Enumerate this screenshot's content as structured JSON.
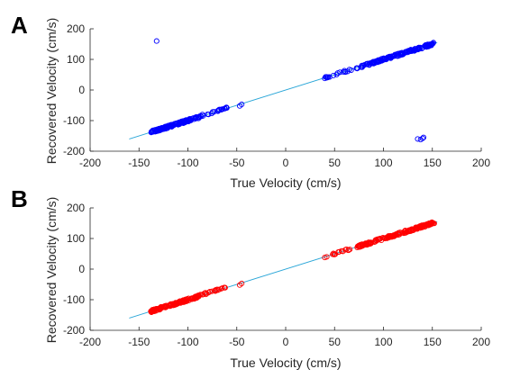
{
  "chart_data": [
    {
      "type": "scatter",
      "panel_label": "A",
      "xlabel": "True Velocity (cm/s)",
      "ylabel": "Recovered Velocity (cm/s)",
      "xlim": [
        -200,
        200
      ],
      "ylim": [
        -200,
        200
      ],
      "xticks": [
        -200,
        -150,
        -100,
        -50,
        0,
        50,
        100,
        150,
        200
      ],
      "yticks": [
        -200,
        -100,
        0,
        100,
        200
      ],
      "grid": false,
      "marker": "open-circle",
      "marker_color": "#0000ff",
      "line_color": "#2aa6d8",
      "reference_line": {
        "x": [
          -160,
          155
        ],
        "y": [
          -160,
          155
        ]
      },
      "series": [
        {
          "values_by_cluster": [
            {
              "x_range": [
                -138,
                -88
              ],
              "y_offset": 0,
              "spread": 4,
              "count": 150
            },
            {
              "x_range": [
                -88,
                -60
              ],
              "y_offset": 2,
              "spread": 3,
              "count": 22
            },
            {
              "x_range": [
                40,
                72
              ],
              "y_offset": 0,
              "spread": 3,
              "count": 16
            },
            {
              "x_range": [
                72,
                152
              ],
              "y_offset": 0,
              "spread": 4,
              "count": 160
            }
          ],
          "points": [
            [
              -132,
              160
            ],
            [
              -45,
              -47
            ],
            [
              -47,
              -52
            ],
            [
              40,
              38
            ],
            [
              42,
              40
            ],
            [
              135,
              -160
            ],
            [
              138,
              -162
            ],
            [
              140,
              -158
            ],
            [
              141,
              -155
            ]
          ]
        }
      ]
    },
    {
      "type": "scatter",
      "panel_label": "B",
      "xlabel": "True Velocity (cm/s)",
      "ylabel": "Recovered Velocity (cm/s)",
      "xlim": [
        -200,
        200
      ],
      "ylim": [
        -200,
        200
      ],
      "xticks": [
        -200,
        -150,
        -100,
        -50,
        0,
        50,
        100,
        150,
        200
      ],
      "yticks": [
        -200,
        -100,
        0,
        100,
        200
      ],
      "grid": false,
      "marker": "open-circle",
      "marker_color": "#ff0000",
      "line_color": "#2aa6d8",
      "reference_line": {
        "x": [
          -160,
          155
        ],
        "y": [
          -160,
          155
        ]
      },
      "series": [
        {
          "values_by_cluster": [
            {
              "x_range": [
                -138,
                -88
              ],
              "y_offset": 0,
              "spread": 4,
              "count": 150
            },
            {
              "x_range": [
                -88,
                -60
              ],
              "y_offset": 2,
              "spread": 3,
              "count": 22
            },
            {
              "x_range": [
                48,
                72
              ],
              "y_offset": 0,
              "spread": 3,
              "count": 14
            },
            {
              "x_range": [
                72,
                152
              ],
              "y_offset": 0,
              "spread": 4,
              "count": 170
            }
          ],
          "points": [
            [
              -45,
              -47
            ],
            [
              -47,
              -52
            ],
            [
              40,
              38
            ],
            [
              42,
              40
            ]
          ]
        }
      ]
    }
  ]
}
